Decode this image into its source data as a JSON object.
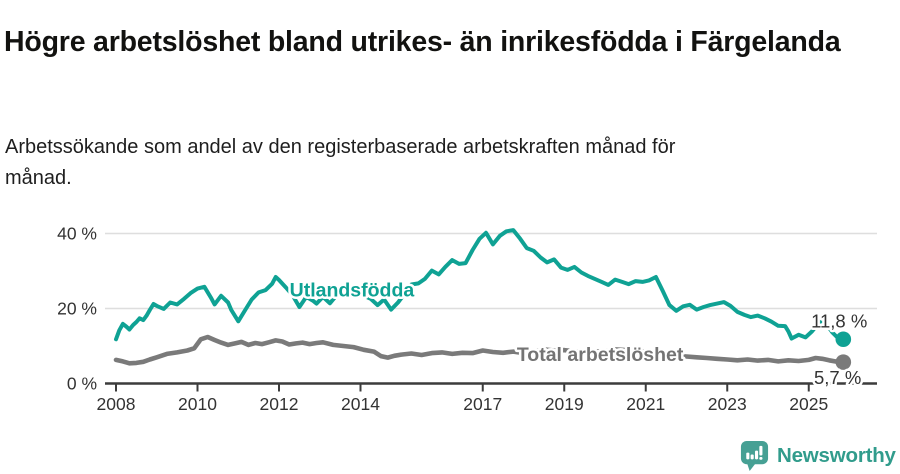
{
  "header": {
    "title": "Högre arbetslöshet bland utrikes- än inrikesfödda i Färgelanda",
    "subtitle": "Arbetssökande som andel av den registerbaserade arbetskraften månad för månad."
  },
  "footer": {
    "brand": "Newsworthy",
    "logo_icon": "newsworthy-speech-bubble-bar-chart-icon",
    "brand_color": "#319c8c",
    "icon_color": "#46a094"
  },
  "colors": {
    "grid": "#dedede",
    "axis": "#3c3c3c",
    "tick_text": "#333333",
    "halo": "#ffffff"
  },
  "chart_data": {
    "type": "line",
    "title": "Högre arbetslöshet bland utrikes- än inrikesfödda i Färgelanda",
    "subtitle": "Arbetssökande som andel av den registerbaserade arbetskraften månad för månad.",
    "unit": "%",
    "x_range": [
      2008.0,
      2026.1
    ],
    "ylim": [
      0,
      44
    ],
    "grid": "horizontal",
    "legend_position": "inline-on-line",
    "x_axis": {
      "ticks": [
        {
          "value": 2008,
          "label": "2008"
        },
        {
          "value": 2010,
          "label": "2010"
        },
        {
          "value": 2012,
          "label": "2012"
        },
        {
          "value": 2014,
          "label": "2014"
        },
        {
          "value": 2017,
          "label": "2017"
        },
        {
          "value": 2019,
          "label": "2019"
        },
        {
          "value": 2021,
          "label": "2021"
        },
        {
          "value": 2023,
          "label": "2023"
        },
        {
          "value": 2025,
          "label": "2025"
        }
      ]
    },
    "y_axis": {
      "ticks": [
        {
          "value": 0,
          "label": "0 %"
        },
        {
          "value": 20,
          "label": "20 %"
        },
        {
          "value": 40,
          "label": "40 %"
        }
      ]
    },
    "series": [
      {
        "name": "Utlandsfödda",
        "color": "#0fa294",
        "label_color": "#0fa294",
        "end_value": 11.8,
        "end_value_label": "11,8 %",
        "inline_label_pos": {
          "x": 2013.79,
          "y": 23.2
        },
        "points": [
          [
            2008.0,
            11.8
          ],
          [
            2008.08,
            14.2
          ],
          [
            2008.17,
            15.9
          ],
          [
            2008.25,
            15.2
          ],
          [
            2008.33,
            14.4
          ],
          [
            2008.42,
            15.6
          ],
          [
            2008.5,
            16.4
          ],
          [
            2008.58,
            17.4
          ],
          [
            2008.67,
            16.9
          ],
          [
            2008.75,
            18.1
          ],
          [
            2008.83,
            19.6
          ],
          [
            2008.92,
            21.2
          ],
          [
            2009.0,
            20.7
          ],
          [
            2009.17,
            19.9
          ],
          [
            2009.33,
            21.6
          ],
          [
            2009.5,
            21.1
          ],
          [
            2009.67,
            22.6
          ],
          [
            2009.83,
            24.1
          ],
          [
            2010.0,
            25.3
          ],
          [
            2010.17,
            25.8
          ],
          [
            2010.33,
            22.9
          ],
          [
            2010.42,
            21.1
          ],
          [
            2010.58,
            23.4
          ],
          [
            2010.75,
            21.6
          ],
          [
            2010.83,
            19.6
          ],
          [
            2011.0,
            16.6
          ],
          [
            2011.17,
            19.6
          ],
          [
            2011.33,
            22.4
          ],
          [
            2011.5,
            24.3
          ],
          [
            2011.67,
            24.9
          ],
          [
            2011.83,
            26.6
          ],
          [
            2011.92,
            28.4
          ],
          [
            2012.0,
            27.6
          ],
          [
            2012.17,
            25.6
          ],
          [
            2012.33,
            23.6
          ],
          [
            2012.5,
            20.4
          ],
          [
            2012.67,
            23.1
          ],
          [
            2012.83,
            22.1
          ],
          [
            2012.92,
            21.3
          ],
          [
            2013.08,
            23.1
          ],
          [
            2013.25,
            21.4
          ],
          [
            2013.42,
            23.6
          ],
          [
            2013.58,
            24.6
          ],
          [
            2013.75,
            23.9
          ],
          [
            2013.92,
            24.4
          ],
          [
            2014.08,
            23.4
          ],
          [
            2014.25,
            22.6
          ],
          [
            2014.42,
            20.9
          ],
          [
            2014.58,
            22.4
          ],
          [
            2014.75,
            19.7
          ],
          [
            2014.92,
            21.6
          ],
          [
            2015.08,
            23.9
          ],
          [
            2015.25,
            26.4
          ],
          [
            2015.42,
            26.7
          ],
          [
            2015.58,
            27.9
          ],
          [
            2015.75,
            30.1
          ],
          [
            2015.92,
            29.1
          ],
          [
            2016.08,
            31.1
          ],
          [
            2016.25,
            32.9
          ],
          [
            2016.42,
            31.9
          ],
          [
            2016.58,
            32.1
          ],
          [
            2016.75,
            35.6
          ],
          [
            2016.92,
            38.6
          ],
          [
            2017.08,
            40.2
          ],
          [
            2017.25,
            37.1
          ],
          [
            2017.42,
            39.4
          ],
          [
            2017.58,
            40.6
          ],
          [
            2017.75,
            40.9
          ],
          [
            2017.92,
            38.6
          ],
          [
            2018.08,
            36.1
          ],
          [
            2018.25,
            35.4
          ],
          [
            2018.42,
            33.6
          ],
          [
            2018.58,
            32.3
          ],
          [
            2018.75,
            33.1
          ],
          [
            2018.92,
            30.9
          ],
          [
            2019.08,
            30.3
          ],
          [
            2019.25,
            31.1
          ],
          [
            2019.42,
            29.6
          ],
          [
            2019.58,
            28.7
          ],
          [
            2019.75,
            27.9
          ],
          [
            2019.92,
            27.1
          ],
          [
            2020.08,
            26.3
          ],
          [
            2020.25,
            27.7
          ],
          [
            2020.42,
            27.1
          ],
          [
            2020.58,
            26.5
          ],
          [
            2020.75,
            27.3
          ],
          [
            2020.92,
            27.1
          ],
          [
            2021.08,
            27.5
          ],
          [
            2021.25,
            28.4
          ],
          [
            2021.42,
            24.6
          ],
          [
            2021.58,
            20.9
          ],
          [
            2021.75,
            19.4
          ],
          [
            2021.92,
            20.6
          ],
          [
            2022.08,
            21.0
          ],
          [
            2022.25,
            19.7
          ],
          [
            2022.42,
            20.4
          ],
          [
            2022.58,
            20.9
          ],
          [
            2022.75,
            21.3
          ],
          [
            2022.92,
            21.7
          ],
          [
            2023.08,
            20.7
          ],
          [
            2023.25,
            19.1
          ],
          [
            2023.42,
            18.3
          ],
          [
            2023.58,
            17.7
          ],
          [
            2023.75,
            18.1
          ],
          [
            2023.92,
            17.4
          ],
          [
            2024.08,
            16.5
          ],
          [
            2024.25,
            15.4
          ],
          [
            2024.42,
            15.3
          ],
          [
            2024.5,
            13.9
          ],
          [
            2024.58,
            12.0
          ],
          [
            2024.75,
            13.0
          ],
          [
            2024.92,
            12.3
          ],
          [
            2025.08,
            13.9
          ],
          [
            2025.25,
            16.1
          ],
          [
            2025.33,
            17.0
          ],
          [
            2025.42,
            16.0
          ],
          [
            2025.58,
            13.6
          ],
          [
            2025.75,
            11.8
          ]
        ]
      },
      {
        "name": "Total arbetslöshet",
        "color": "#7a7a7a",
        "label_color": "#747474",
        "end_value": 5.7,
        "end_value_label": "5,7 %",
        "inline_label_pos": {
          "x": 2019.88,
          "y": 6.0
        },
        "points": [
          [
            2008.0,
            6.3
          ],
          [
            2008.17,
            5.9
          ],
          [
            2008.33,
            5.4
          ],
          [
            2008.5,
            5.5
          ],
          [
            2008.67,
            5.8
          ],
          [
            2008.83,
            6.4
          ],
          [
            2009.0,
            7.0
          ],
          [
            2009.25,
            7.9
          ],
          [
            2009.5,
            8.3
          ],
          [
            2009.75,
            8.8
          ],
          [
            2009.92,
            9.4
          ],
          [
            2010.08,
            11.8
          ],
          [
            2010.25,
            12.4
          ],
          [
            2010.42,
            11.6
          ],
          [
            2010.58,
            10.9
          ],
          [
            2010.75,
            10.3
          ],
          [
            2010.92,
            10.7
          ],
          [
            2011.08,
            11.1
          ],
          [
            2011.25,
            10.3
          ],
          [
            2011.42,
            10.8
          ],
          [
            2011.58,
            10.5
          ],
          [
            2011.75,
            11.0
          ],
          [
            2011.92,
            11.5
          ],
          [
            2012.08,
            11.2
          ],
          [
            2012.25,
            10.4
          ],
          [
            2012.42,
            10.7
          ],
          [
            2012.58,
            10.9
          ],
          [
            2012.75,
            10.5
          ],
          [
            2012.92,
            10.8
          ],
          [
            2013.08,
            11.0
          ],
          [
            2013.33,
            10.3
          ],
          [
            2013.58,
            10.0
          ],
          [
            2013.83,
            9.7
          ],
          [
            2014.08,
            9.0
          ],
          [
            2014.33,
            8.5
          ],
          [
            2014.5,
            7.3
          ],
          [
            2014.67,
            6.9
          ],
          [
            2014.83,
            7.4
          ],
          [
            2015.0,
            7.7
          ],
          [
            2015.25,
            8.0
          ],
          [
            2015.5,
            7.6
          ],
          [
            2015.75,
            8.1
          ],
          [
            2016.0,
            8.3
          ],
          [
            2016.25,
            7.9
          ],
          [
            2016.5,
            8.2
          ],
          [
            2016.75,
            8.1
          ],
          [
            2017.0,
            8.8
          ],
          [
            2017.25,
            8.4
          ],
          [
            2017.5,
            8.2
          ],
          [
            2017.75,
            8.5
          ],
          [
            2018.0,
            8.1
          ],
          [
            2018.25,
            8.4
          ],
          [
            2018.5,
            9.1
          ],
          [
            2018.75,
            8.8
          ],
          [
            2019.0,
            8.9
          ],
          [
            2019.25,
            8.6
          ],
          [
            2019.5,
            8.4
          ],
          [
            2019.75,
            8.6
          ],
          [
            2020.0,
            8.5
          ],
          [
            2020.25,
            9.1
          ],
          [
            2020.5,
            8.9
          ],
          [
            2020.75,
            8.7
          ],
          [
            2021.0,
            8.4
          ],
          [
            2021.25,
            8.2
          ],
          [
            2021.5,
            7.7
          ],
          [
            2021.75,
            7.4
          ],
          [
            2022.0,
            7.2
          ],
          [
            2022.25,
            7.0
          ],
          [
            2022.5,
            6.8
          ],
          [
            2022.75,
            6.6
          ],
          [
            2023.0,
            6.4
          ],
          [
            2023.25,
            6.2
          ],
          [
            2023.5,
            6.4
          ],
          [
            2023.75,
            6.1
          ],
          [
            2024.0,
            6.3
          ],
          [
            2024.25,
            5.9
          ],
          [
            2024.5,
            6.2
          ],
          [
            2024.75,
            6.0
          ],
          [
            2025.0,
            6.3
          ],
          [
            2025.17,
            6.8
          ],
          [
            2025.33,
            6.6
          ],
          [
            2025.5,
            6.2
          ],
          [
            2025.75,
            5.7
          ]
        ]
      }
    ]
  }
}
